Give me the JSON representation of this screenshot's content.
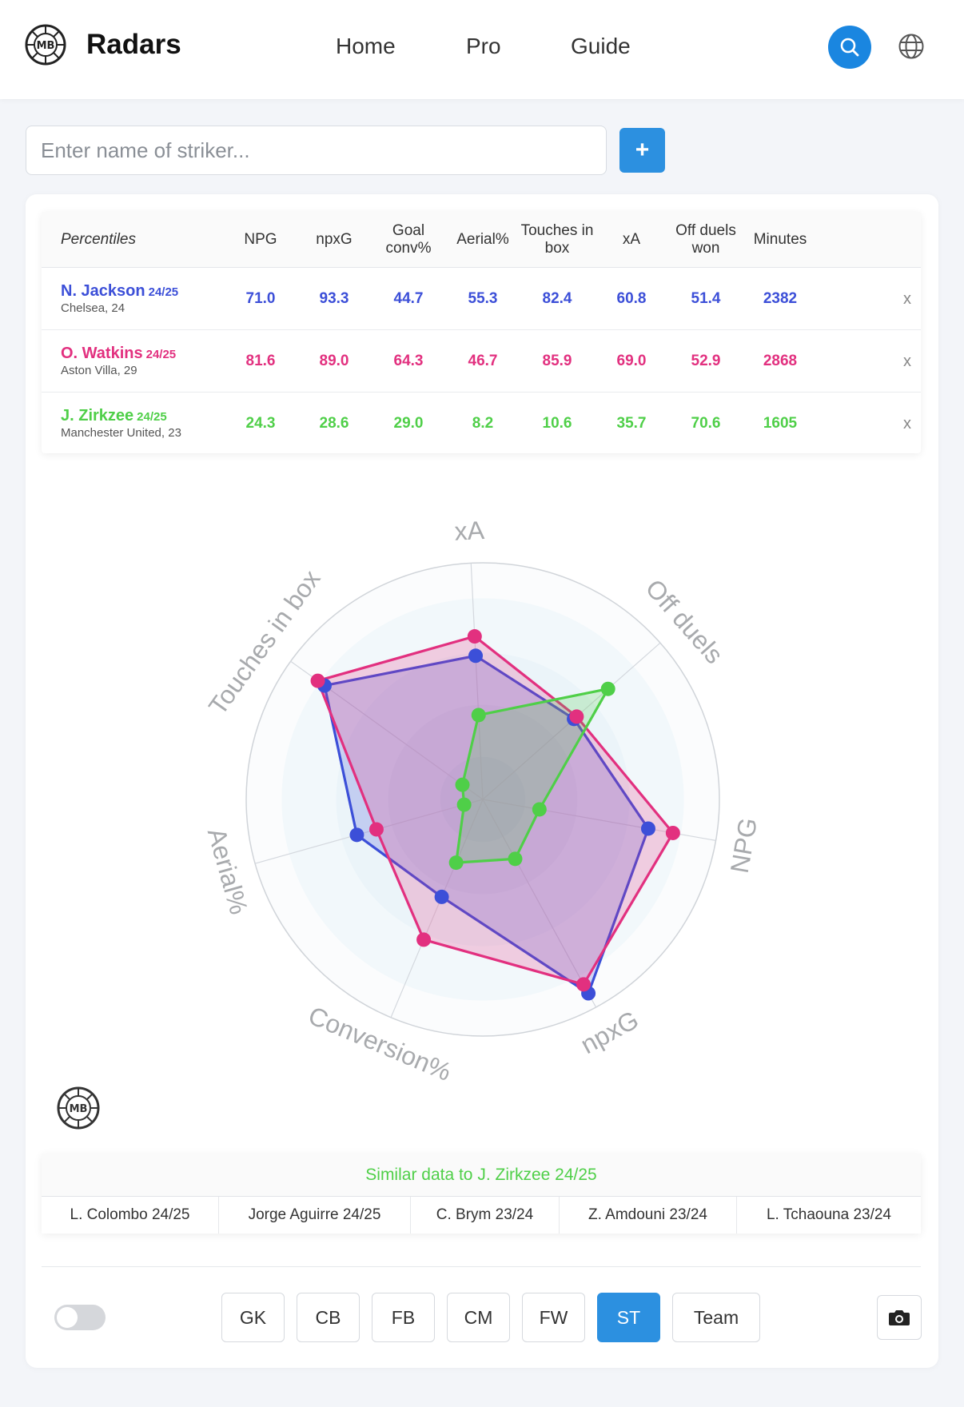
{
  "header": {
    "brand": "Radars",
    "logo_text": "MB",
    "nav": [
      "Home",
      "Pro",
      "Guide"
    ]
  },
  "search": {
    "placeholder": "Enter name of striker...",
    "add_label": "+"
  },
  "table": {
    "title": "Percentiles",
    "columns": [
      "NPG",
      "npxG",
      "Goal conv%",
      "Aerial%",
      "Touches in box",
      "xA",
      "Off duels won",
      "Minutes"
    ],
    "players": [
      {
        "name": "N. Jackson",
        "season": "24/25",
        "team": "Chelsea, 24",
        "color": "#3c4fd8",
        "values": [
          "71.0",
          "93.3",
          "44.7",
          "55.3",
          "82.4",
          "60.8",
          "51.4",
          "2382"
        ]
      },
      {
        "name": "O. Watkins",
        "season": "24/25",
        "team": "Aston Villa, 29",
        "color": "#e2307f",
        "values": [
          "81.6",
          "89.0",
          "64.3",
          "46.7",
          "85.9",
          "69.0",
          "52.9",
          "2868"
        ]
      },
      {
        "name": "J. Zirkzee",
        "season": "24/25",
        "team": "Manchester United, 23",
        "color": "#4fcf48",
        "values": [
          "24.3",
          "28.6",
          "29.0",
          "8.2",
          "10.6",
          "35.7",
          "70.6",
          "1605"
        ]
      }
    ],
    "remove_label": "x"
  },
  "chart_data": {
    "type": "radar",
    "axes": [
      "NPG",
      "npxG",
      "Conversion%",
      "Aerial%",
      "Touches in box",
      "xA",
      "Off duels"
    ],
    "range": [
      0,
      100
    ],
    "series": [
      {
        "name": "N. Jackson 24/25",
        "color": "#3c4fd8",
        "values": [
          71.0,
          93.3,
          44.7,
          55.3,
          82.4,
          60.8,
          51.4
        ]
      },
      {
        "name": "O. Watkins 24/25",
        "color": "#e2307f",
        "values": [
          81.6,
          89.0,
          64.3,
          46.7,
          85.9,
          69.0,
          52.9
        ]
      },
      {
        "name": "J. Zirkzee 24/25",
        "color": "#4fcf48",
        "values": [
          24.3,
          28.6,
          29.0,
          8.2,
          10.6,
          35.7,
          70.6
        ]
      }
    ]
  },
  "similar": {
    "title": "Similar data to J. Zirkzee 24/25",
    "players": [
      "L. Colombo 24/25",
      "Jorge Aguirre 24/25",
      "C. Brym 23/24",
      "Z. Amdouni 23/24",
      "L. Tchaouna 23/24"
    ]
  },
  "positions": {
    "items": [
      "GK",
      "CB",
      "FB",
      "CM",
      "FW",
      "ST",
      "Team"
    ],
    "active": "ST"
  },
  "colors": {
    "accent": "#2c90e0"
  }
}
